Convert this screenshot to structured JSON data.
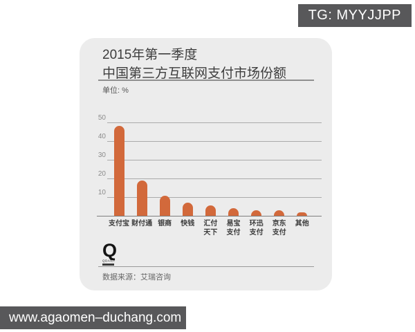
{
  "watermarks": {
    "top_right": "TG: MYYJJPP",
    "bottom_left": "www.agaomen–duchang.com"
  },
  "card": {
    "title_line1": "2015年第一季度",
    "title_line2": "中国第三方互联网支付市场份额",
    "unit_label": "单位: %",
    "source_label": "数据来源：艾瑞咨询",
    "logo_letter": "Q",
    "logo_caption": "QDAILY"
  },
  "colors": {
    "bar": "#d2693b",
    "card_bg": "#ececec",
    "watermark_bg": "#58585a",
    "grid_line": "#aaaaaa"
  },
  "chart_data": {
    "type": "bar",
    "title": "2015年第一季度 中国第三方互联网支付市场份额",
    "unit": "%",
    "categories": [
      "支付宝",
      "财付通",
      "银商",
      "快钱",
      "汇付\n天下",
      "易宝\n支付",
      "环迅\n支付",
      "京东\n支付",
      "其他"
    ],
    "values": [
      48,
      19,
      10.7,
      7,
      5.6,
      4,
      3,
      2.8,
      2
    ],
    "yticks": [
      10,
      20,
      30,
      40,
      50
    ],
    "ylim": [
      0,
      50
    ],
    "grid": true,
    "legend": "none",
    "source": "数据来源：艾瑞咨询"
  }
}
